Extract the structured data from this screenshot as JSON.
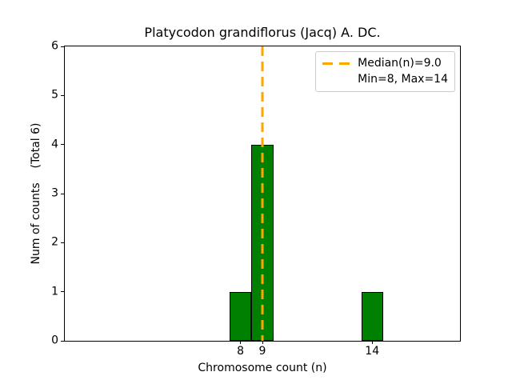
{
  "chart_data": {
    "type": "bar",
    "title": "Platycodon grandiflorus (Jacq) A. DC.",
    "xlabel": "Chromosome count (n)",
    "ylabel": "Num of counts    (Total 6)",
    "categories": [
      8,
      9,
      14
    ],
    "values": [
      1,
      4,
      1
    ],
    "bin_width": 1,
    "total_counts": 6,
    "median_n": 9.0,
    "min_n": 8,
    "max_n": 14,
    "xlim": [
      0,
      18
    ],
    "ylim": [
      0,
      6
    ],
    "xticks": [
      8,
      9,
      14
    ],
    "yticks": [
      0,
      1,
      2,
      3,
      4,
      5,
      6
    ],
    "bar_color": "#008000",
    "bar_edge_color": "#000000",
    "median_line_color": "#FFA500",
    "median_line_style": "dashed",
    "grid": false,
    "legend_position": "upper right",
    "background_color": "#ffffff"
  },
  "legend": {
    "entries": [
      {
        "label": "Median(n)=9.0",
        "marker": "dashed-line",
        "marker_color": "#FFA500"
      },
      {
        "label": "Min=8, Max=14",
        "marker": "none",
        "marker_color": ""
      }
    ]
  }
}
